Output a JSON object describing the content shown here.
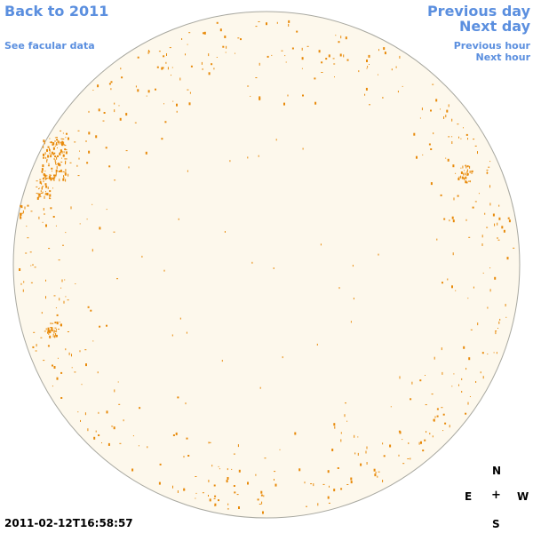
{
  "nav": {
    "back_label": "Back to 2011",
    "facular_label": "See facular data",
    "prev_day_label": "Previous day",
    "next_day_label": "Next day",
    "prev_hour_label": "Previous hour",
    "next_hour_label": "Next hour"
  },
  "compass": {
    "north": "N",
    "east": "E",
    "center": "+",
    "west": "W",
    "south": "S"
  },
  "timestamp": "2011-02-12T16:58:57",
  "colors": {
    "link": "#5b8fdf",
    "disk_fill": "#fdf8ec",
    "disk_outline": "#a8a8a0",
    "feature": "#e88a0a"
  }
}
